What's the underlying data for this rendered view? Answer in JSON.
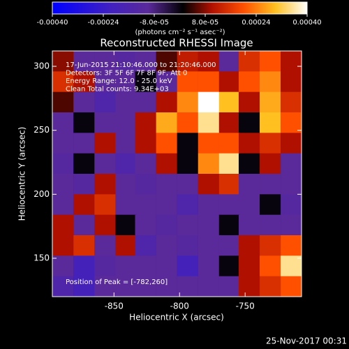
{
  "chart_data": {
    "type": "heatmap",
    "title": "Reconstructed RHESSI Image",
    "x_label": "Heliocentric X (arcsec)",
    "y_label": "Heliocentric Y (arcsec)",
    "colorbar_label": "(photons cm⁻² s⁻¹ asec⁻²)",
    "annotations": [
      "17-Jun-2015 21:10:46.000 to 21:20:46.000",
      "Detectors: 3F 5F 6F 7F 8F 9F, Att 0",
      "Energy Range: 12.0 - 25.0 keV",
      "Clean     Total counts: 9.34E+03"
    ],
    "peak_label": "Position of Peak = [-782,260]",
    "timestamp": "25-Nov-2017 00:31",
    "xlim": [
      -897,
      -707
    ],
    "ylim": [
      120,
      312
    ],
    "xticks": [
      -850,
      -800,
      -750
    ],
    "yticks": [
      150,
      200,
      250,
      300
    ],
    "zlim": [
      -0.0004,
      0.0004
    ],
    "zticks": [
      {
        "value": -0.0004,
        "label": "-0.00040"
      },
      {
        "value": -0.00024,
        "label": "-0.00024"
      },
      {
        "value": -8e-05,
        "label": "-8.0e-05"
      },
      {
        "value": 8e-05,
        "label": "8.0e-05"
      },
      {
        "value": 0.00024,
        "label": "0.00024"
      },
      {
        "value": 0.0004,
        "label": "0.00040"
      }
    ],
    "colormap": [
      {
        "value": -0.0004,
        "color": "#0000ff"
      },
      {
        "value": -0.00022,
        "color": "#4020c0"
      },
      {
        "value": -0.0001,
        "color": "#5a2a9a"
      },
      {
        "value": 1e-05,
        "color": "#000000"
      },
      {
        "value": 0.0001,
        "color": "#b01000"
      },
      {
        "value": 0.0002,
        "color": "#ff5000"
      },
      {
        "value": 0.0003,
        "color": "#ffc020"
      },
      {
        "value": 0.0004,
        "color": "#ffffff"
      }
    ],
    "x": [
      -889,
      -873,
      -857,
      -841,
      -826,
      -810,
      -794,
      -778,
      -762,
      -747,
      -731,
      -715
    ],
    "y": [
      304,
      288,
      272,
      256,
      240,
      224,
      208,
      192,
      176,
      160,
      144,
      128
    ],
    "z": [
      [
        8e-05,
        -0.0001,
        -0.0001,
        -0.00012,
        -0.0001,
        5e-05,
        0.00012,
        0.0001,
        -0.0001,
        0.00015,
        0.0002,
        0.0001
      ],
      [
        0.00015,
        0.0001,
        -0.0001,
        -0.0001,
        0,
        -0.0001,
        0.0002,
        0.0002,
        0.0001,
        0.0002,
        0.00025,
        0.0001
      ],
      [
        5e-05,
        -0.0001,
        -0.00015,
        -0.0001,
        -0.0001,
        0.0001,
        0.00025,
        0.0004,
        0.0003,
        0.0001,
        0.00028,
        0.00015
      ],
      [
        -0.0001,
        0,
        -0.0001,
        -0.0001,
        0.0001,
        0.00028,
        0.0002,
        0.00035,
        0.0001,
        0,
        0.0003,
        0.0002
      ],
      [
        -0.0001,
        -0.0001,
        0.0001,
        -0.0001,
        0.0001,
        0.0002,
        0,
        0.0002,
        0.0002,
        0.0001,
        0.00015,
        0.0001
      ],
      [
        -0.00012,
        0,
        -0.0001,
        -0.00015,
        -0.0001,
        0.0001,
        0,
        0.00025,
        0.00035,
        0,
        0.0001,
        -0.0001
      ],
      [
        -0.0001,
        -0.00012,
        0.0001,
        -0.0001,
        -0.00012,
        -0.0001,
        -0.0001,
        0.0001,
        0.00015,
        -0.0001,
        -0.0001,
        -0.0001
      ],
      [
        -0.0001,
        0.0001,
        0.00015,
        -0.0001,
        -0.0001,
        -0.0001,
        -0.00015,
        -0.0001,
        -0.0001,
        -0.0001,
        0,
        -0.00012
      ],
      [
        0.0001,
        -0.0001,
        0.0001,
        0,
        -0.0001,
        -0.00012,
        -0.0001,
        -0.0001,
        0,
        -0.0001,
        -0.0001,
        -0.0001
      ],
      [
        0.0001,
        0.00015,
        -0.0001,
        0.0001,
        -0.00015,
        -0.0001,
        -0.00012,
        -0.0001,
        -0.0001,
        0.0001,
        0.00015,
        0.0002
      ],
      [
        -0.0001,
        -0.0002,
        -0.00012,
        -0.0001,
        -0.0001,
        -0.0001,
        -0.0002,
        -0.0001,
        0,
        0.0001,
        0.0002,
        0.00035
      ],
      [
        -0.00015,
        -0.0002,
        -0.0001,
        -0.0001,
        -0.0001,
        -0.0001,
        -0.0001,
        -0.0001,
        -0.0001,
        0.0001,
        0.00015,
        0.0002
      ]
    ]
  }
}
